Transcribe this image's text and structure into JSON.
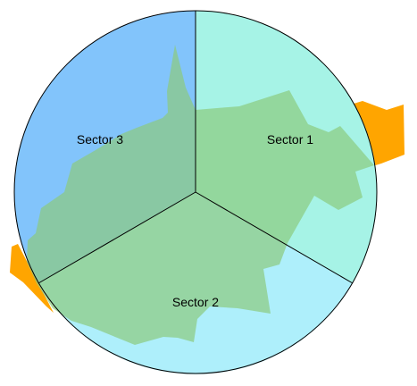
{
  "diagram": {
    "sectors": [
      {
        "id": 1,
        "label": "Sector 1",
        "color": "#A6F3E6"
      },
      {
        "id": 2,
        "label": "Sector 2",
        "color": "#AEEFFB"
      },
      {
        "id": 3,
        "label": "Sector 3",
        "color": "#82C4FB"
      }
    ],
    "region_color": "#8CCB7E",
    "region_opacity": 0.7,
    "tab_color": "#FFA500",
    "outline_color": "#000000"
  }
}
